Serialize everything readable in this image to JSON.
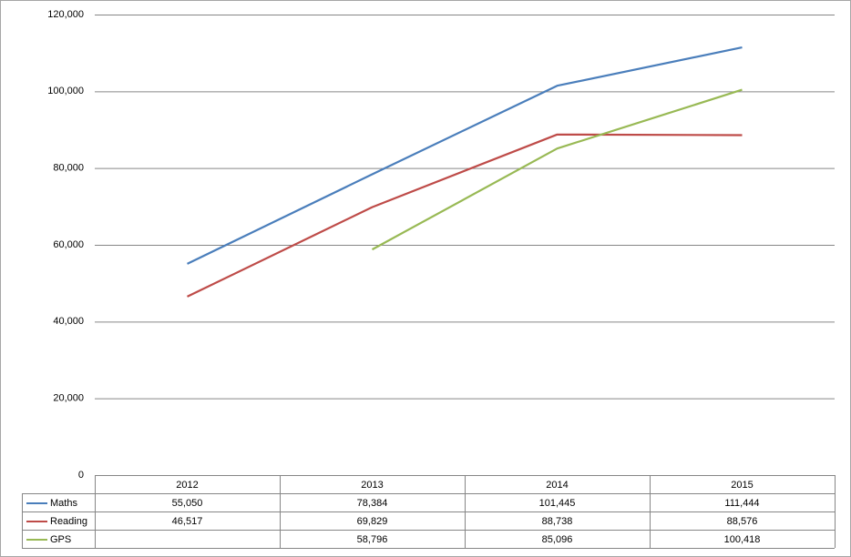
{
  "chart_data": {
    "type": "line",
    "categories": [
      "2012",
      "2013",
      "2014",
      "2015"
    ],
    "series": [
      {
        "name": "Maths",
        "color": "#4a7ebb",
        "values": [
          55050,
          78384,
          101445,
          111444
        ],
        "value_labels": [
          "55,050",
          "78,384",
          "101,445",
          "111,444"
        ]
      },
      {
        "name": "Reading",
        "color": "#be4b48",
        "values": [
          46517,
          69829,
          88738,
          88576
        ],
        "value_labels": [
          "46,517",
          "69,829",
          "88,738",
          "88,576"
        ]
      },
      {
        "name": "GPS",
        "color": "#98b954",
        "values": [
          null,
          58796,
          85096,
          100418
        ],
        "value_labels": [
          null,
          "58,796",
          "85,096",
          "100,418"
        ]
      }
    ],
    "ylim": [
      0,
      120000
    ],
    "yticks": [
      0,
      {
        "value": 20000,
        "label": "20,000"
      },
      {
        "value": 40000,
        "label": "40,000"
      },
      {
        "value": 60000,
        "label": "60,000"
      },
      {
        "value": 80000,
        "label": "80,000"
      },
      {
        "value": 100000,
        "label": "100,000"
      },
      {
        "value": 120000,
        "label": "120,000"
      }
    ],
    "grid": true,
    "data_table": true
  }
}
